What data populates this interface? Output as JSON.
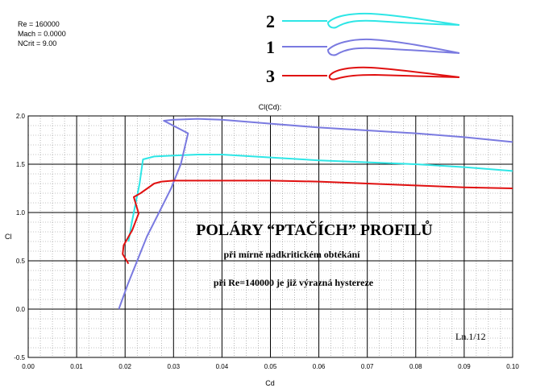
{
  "params": {
    "re": "Re = 160000",
    "mach": "Mach = 0.0000",
    "ncrit": "NCrit = 9.00"
  },
  "legend": [
    {
      "label": "2",
      "color": "#2ee6e6"
    },
    {
      "label": "1",
      "color": "#7a7ae0"
    },
    {
      "label": "3",
      "color": "#e01010"
    }
  ],
  "chart_data": {
    "type": "line",
    "title": "Cl(Cd):",
    "xlabel": "Cd",
    "ylabel": "Cl",
    "xlim": [
      0.0,
      0.1
    ],
    "ylim": [
      -0.5,
      2.0
    ],
    "x_ticks": [
      "0.00",
      "0.01",
      "0.02",
      "0.03",
      "0.04",
      "0.05",
      "0.06",
      "0.07",
      "0.08",
      "0.09",
      "0.10"
    ],
    "y_ticks": [
      "-0.5",
      "0.0",
      "0.5",
      "1.0",
      "1.5",
      "2.0"
    ],
    "grid": true,
    "annotations": {
      "heading": "POLÁRY  “PTAČÍCH”  PROFILŮ",
      "sub1": "při mírně nadkritickém obtékání",
      "sub2": "při Re=140000 je již výrazná hystereze",
      "corner": "Ln.1/12"
    },
    "series": [
      {
        "name": "2",
        "color": "#2ee6e6",
        "x": [
          0.0207,
          0.0214,
          0.0222,
          0.023,
          0.0237,
          0.026,
          0.03,
          0.035,
          0.04,
          0.05,
          0.06,
          0.07,
          0.08,
          0.09,
          0.1
        ],
        "y": [
          0.7,
          0.9,
          1.1,
          1.3,
          1.55,
          1.58,
          1.59,
          1.6,
          1.6,
          1.57,
          1.54,
          1.52,
          1.5,
          1.47,
          1.43
        ]
      },
      {
        "name": "1",
        "color": "#7a7ae0",
        "x": [
          0.0187,
          0.0205,
          0.0225,
          0.0245,
          0.027,
          0.0295,
          0.0315,
          0.033,
          0.028,
          0.03,
          0.035,
          0.04,
          0.05,
          0.06,
          0.07,
          0.08,
          0.09,
          0.1
        ],
        "y": [
          0.0,
          0.25,
          0.5,
          0.75,
          1.0,
          1.25,
          1.5,
          1.82,
          1.95,
          1.96,
          1.97,
          1.96,
          1.92,
          1.88,
          1.85,
          1.82,
          1.78,
          1.73
        ]
      },
      {
        "name": "3",
        "color": "#e01010",
        "x": [
          0.0207,
          0.0195,
          0.0197,
          0.0215,
          0.0228,
          0.0218,
          0.0232,
          0.026,
          0.0275,
          0.03,
          0.04,
          0.05,
          0.06,
          0.07,
          0.08,
          0.09,
          0.1
        ],
        "y": [
          0.47,
          0.57,
          0.66,
          0.82,
          0.99,
          1.16,
          1.2,
          1.3,
          1.32,
          1.33,
          1.33,
          1.33,
          1.32,
          1.3,
          1.28,
          1.26,
          1.25
        ]
      }
    ]
  }
}
